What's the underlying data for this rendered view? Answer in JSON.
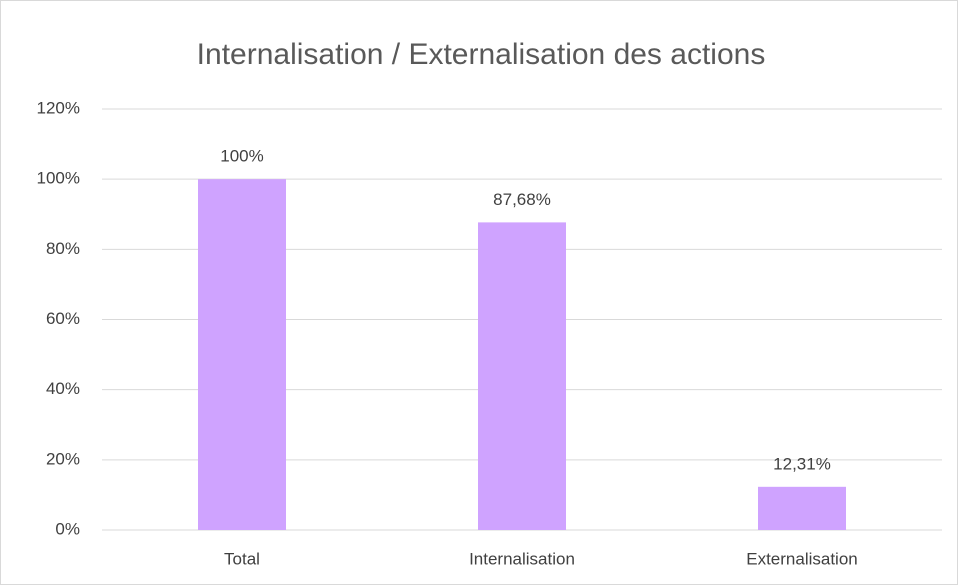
{
  "chart_data": {
    "type": "bar",
    "title": "Internalisation / Externalisation des actions",
    "categories": [
      "Total",
      "Internalisation",
      "Externalisation"
    ],
    "values": [
      100,
      87.68,
      12.31
    ],
    "value_labels": [
      "100%",
      "87,68%",
      "12,31%"
    ],
    "color": "#cfa3ff",
    "ylim": [
      0,
      120
    ],
    "yticks": [
      {
        "value": 0,
        "label": "0%"
      },
      {
        "value": 20,
        "label": "20%"
      },
      {
        "value": 40,
        "label": "40%"
      },
      {
        "value": 60,
        "label": "60%"
      },
      {
        "value": 80,
        "label": "80%"
      },
      {
        "value": 100,
        "label": "100%"
      },
      {
        "value": 120,
        "label": "120%"
      }
    ],
    "grid": true
  }
}
